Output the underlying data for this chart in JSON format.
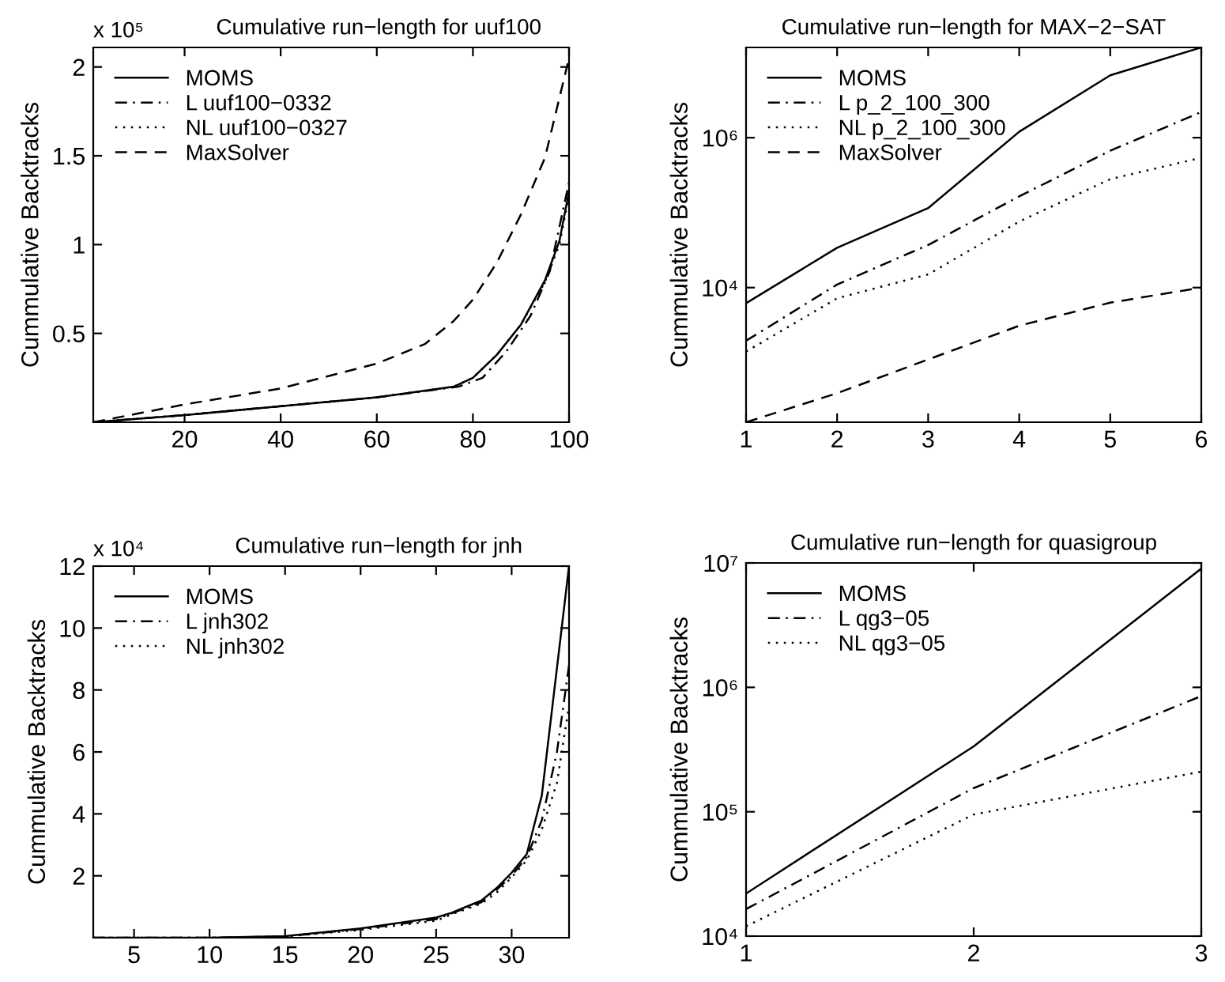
{
  "chart_data": [
    {
      "type": "line",
      "title": "Cumulative run−length for uuf100",
      "ylabel": "Cummulative Backtracks",
      "annotations": [
        "x 10⁵"
      ],
      "xlim": [
        1,
        100
      ],
      "ylim": [
        0,
        2.11
      ],
      "xticks": [
        20,
        40,
        60,
        80,
        100
      ],
      "yticks": [
        0.5,
        1,
        1.5,
        2
      ],
      "grid": false,
      "legend": "top left",
      "series": [
        {
          "name": "MOMS",
          "color": "#000000",
          "line_style": "solid",
          "x": [
            1,
            20,
            40,
            60,
            76,
            80,
            85,
            90,
            95,
            98,
            100
          ],
          "values": [
            0,
            0.04,
            0.09,
            0.14,
            0.2,
            0.25,
            0.38,
            0.55,
            0.8,
            1.02,
            1.3
          ]
        },
        {
          "name": "L uuf100−0332",
          "color": "#000000",
          "line_style": "dashdot",
          "x": [
            1,
            20,
            40,
            60,
            77,
            82,
            87,
            92,
            96,
            100
          ],
          "values": [
            0,
            0.04,
            0.09,
            0.14,
            0.2,
            0.25,
            0.4,
            0.6,
            0.85,
            1.35
          ]
        },
        {
          "name": "NL uuf100−0327",
          "color": "#000000",
          "line_style": "dotted",
          "x": [
            1,
            20,
            40,
            60,
            76,
            80,
            85,
            90,
            95,
            98,
            100
          ],
          "values": [
            0,
            0.04,
            0.09,
            0.14,
            0.2,
            0.25,
            0.38,
            0.55,
            0.79,
            1.0,
            1.28
          ]
        },
        {
          "name": "MaxSolver",
          "color": "#000000",
          "line_style": "dashed",
          "x": [
            1,
            20,
            40,
            60,
            70,
            76,
            80,
            85,
            90,
            95,
            100
          ],
          "values": [
            0,
            0.1,
            0.19,
            0.33,
            0.44,
            0.57,
            0.69,
            0.9,
            1.17,
            1.49,
            2.05
          ]
        }
      ]
    },
    {
      "type": "line",
      "title": "Cumulative run−length for MAX−2−SAT",
      "ylabel": "Cummulative Backtracks",
      "log": "y",
      "xlim": [
        1,
        6
      ],
      "ylim": [
        160,
        16000000
      ],
      "xticks": [
        1,
        2,
        3,
        4,
        5,
        6
      ],
      "yticks": [
        {
          "value": 10000,
          "label": "10⁴"
        },
        {
          "value": 1000000,
          "label": "10⁶"
        }
      ],
      "grid": false,
      "legend": "top left",
      "series": [
        {
          "name": "MOMS",
          "color": "#000000",
          "line_style": "solid",
          "x": [
            1,
            2,
            3,
            4,
            5,
            6
          ],
          "values": [
            6200,
            34000,
            115000,
            1200000,
            6800000,
            16000000
          ]
        },
        {
          "name": "L p_2_100_300",
          "color": "#000000",
          "line_style": "dashdot",
          "x": [
            1,
            2,
            3,
            4,
            5,
            6
          ],
          "values": [
            1950,
            11000,
            37000,
            165000,
            670000,
            2200000
          ]
        },
        {
          "name": "NL p_2_100_300",
          "color": "#000000",
          "line_style": "dotted",
          "x": [
            1,
            2,
            3,
            4,
            5,
            6
          ],
          "values": [
            1400,
            7200,
            15000,
            76000,
            280000,
            540000
          ]
        },
        {
          "name": "MaxSolver",
          "color": "#000000",
          "line_style": "dashed",
          "x": [
            1,
            2,
            3,
            4,
            5,
            6
          ],
          "values": [
            160,
            390,
            1100,
            3100,
            6300,
            10000
          ]
        }
      ]
    },
    {
      "type": "line",
      "title": "Cumulative run−length for jnh",
      "ylabel": "Cummulative Backtracks",
      "annotations": [
        "x 10⁴"
      ],
      "xlim": [
        2.3,
        33.8
      ],
      "ylim": [
        0,
        12
      ],
      "xticks": [
        5,
        10,
        15,
        20,
        25,
        30
      ],
      "yticks": [
        2,
        4,
        6,
        8,
        10,
        12
      ],
      "grid": false,
      "legend": "top left",
      "series": [
        {
          "name": "MOMS",
          "color": "#000000",
          "line_style": "solid",
          "x": [
            2.3,
            10,
            15,
            20,
            25,
            26,
            28,
            29,
            30,
            31,
            32,
            33.8
          ],
          "values": [
            0,
            0,
            0.05,
            0.3,
            0.65,
            0.8,
            1.2,
            1.6,
            2.1,
            2.7,
            4.6,
            12
          ]
        },
        {
          "name": "L jnh302",
          "color": "#000000",
          "line_style": "dashdot",
          "x": [
            2.3,
            10,
            15,
            20,
            25,
            26,
            28,
            29,
            30,
            31,
            32,
            33,
            33.8
          ],
          "values": [
            0,
            0,
            0.04,
            0.28,
            0.6,
            0.78,
            1.15,
            1.55,
            2.0,
            2.6,
            3.8,
            6,
            8.8
          ]
        },
        {
          "name": "NL jnh302",
          "color": "#000000",
          "line_style": "dotted",
          "x": [
            2.3,
            10,
            15,
            20,
            25,
            26,
            28,
            29,
            30,
            31,
            32,
            33,
            33.8
          ],
          "values": [
            0,
            0,
            0.04,
            0.25,
            0.55,
            0.75,
            1.1,
            1.45,
            1.95,
            2.5,
            3.5,
            5,
            7.5
          ]
        }
      ]
    },
    {
      "type": "line",
      "title": "Cumulative run−length for quasigroup",
      "ylabel": "Cummulative Backtracks",
      "log": "y",
      "xlim": [
        1,
        3
      ],
      "ylim": [
        10000,
        10000000
      ],
      "xticks": [
        1,
        2,
        3
      ],
      "yticks": [
        {
          "value": 10000,
          "label": "10⁴"
        },
        {
          "value": 100000,
          "label": "10⁵"
        },
        {
          "value": 1000000,
          "label": "10⁶"
        },
        {
          "value": 10000000,
          "label": "10⁷"
        }
      ],
      "grid": false,
      "legend": "top left",
      "series": [
        {
          "name": "MOMS",
          "color": "#000000",
          "line_style": "solid",
          "x": [
            1,
            2,
            3
          ],
          "values": [
            22000,
            335000,
            9000000
          ]
        },
        {
          "name": "L qg3−05",
          "color": "#000000",
          "line_style": "dashdot",
          "x": [
            1,
            2,
            3
          ],
          "values": [
            16500,
            155000,
            850000
          ]
        },
        {
          "name": "NL qg3−05",
          "color": "#000000",
          "line_style": "dotted",
          "x": [
            1,
            2,
            3
          ],
          "values": [
            12000,
            95000,
            210000
          ]
        }
      ]
    }
  ]
}
